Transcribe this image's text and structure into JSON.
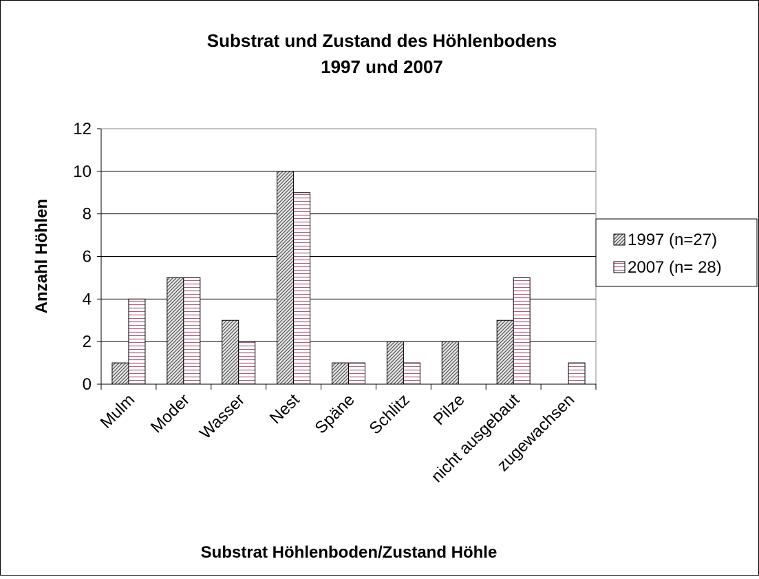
{
  "chart_data": {
    "type": "bar",
    "title": [
      "Substrat und Zustand des Höhlenbodens",
      "1997 und 2007"
    ],
    "x_label": "Substrat Höhlenboden/Zustand Höhle",
    "y_label": "Anzahl Höhlen",
    "categories": [
      "Mulm",
      "Moder",
      "Wasser",
      "Nest",
      "Späne",
      "Schlitz",
      "Pilze",
      "nicht ausgebaut",
      "zugewachsen"
    ],
    "series": [
      {
        "name": "1997 (n=27)",
        "color": "#555555",
        "values": [
          1,
          5,
          3,
          10,
          1,
          2,
          2,
          3,
          0
        ]
      },
      {
        "name": "2007 (n= 28)",
        "color": "#b0607a",
        "values": [
          4,
          5,
          2,
          9,
          1,
          1,
          0,
          5,
          1
        ]
      }
    ],
    "ylim": [
      0,
      12
    ],
    "yticks": [
      0,
      2,
      4,
      6,
      8,
      10,
      12
    ],
    "grid": true,
    "legend": "right"
  }
}
